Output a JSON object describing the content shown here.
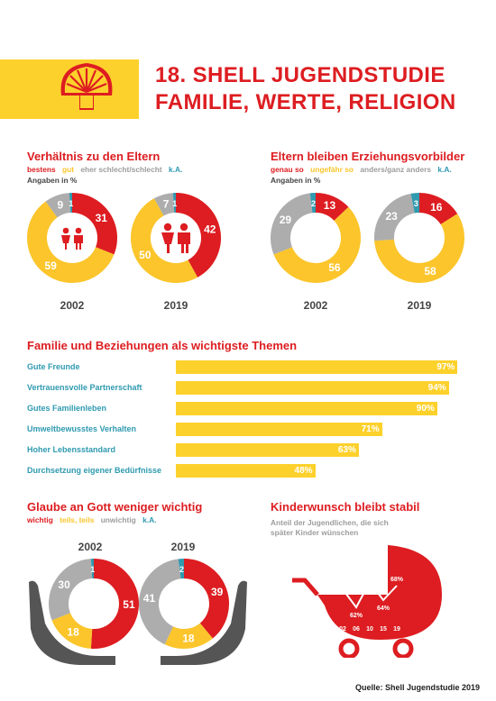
{
  "header": {
    "title_line1": "18. SHELL JUGENDSTUDIE",
    "title_line2": "FAMILIE, WERTE, RELIGION"
  },
  "colors": {
    "red": "#dd1d21",
    "yellow": "#fbc52b",
    "gray": "#adadad",
    "teal": "#2f9ab0"
  },
  "parents": {
    "title": "Verhältnis zu den Eltern",
    "legend": [
      "bestens",
      "gut",
      "eher schlecht/schlecht",
      "k.A."
    ],
    "unit": "Angaben in %"
  },
  "educators": {
    "title": "Eltern bleiben Erziehungsvorbilder",
    "legend": [
      "genau so",
      "ungefähr so",
      "anders/ganz anders",
      "k.A."
    ],
    "unit": "Angaben in %"
  },
  "themes": {
    "title": "Familie und Beziehungen als wichtigste Themen"
  },
  "faith": {
    "title": "Glaube an Gott weniger wichtig",
    "legend": [
      "wichtig",
      "teils, teils",
      "unwichtig",
      "k.A."
    ]
  },
  "children": {
    "title": "Kinderwunsch bleibt stabil",
    "subtitle1": "Anteil der Jugendlichen, die sich",
    "subtitle2": "später Kinder wünschen"
  },
  "source": "Quelle: Shell Jugendstudie 2019",
  "chart_data": [
    {
      "type": "pie",
      "title": "Verhältnis zu den Eltern",
      "unit": "%",
      "categories": [
        "bestens",
        "gut",
        "eher schlecht/schlecht",
        "k.A."
      ],
      "series": [
        {
          "name": "2002",
          "values": [
            31,
            59,
            9,
            1
          ]
        },
        {
          "name": "2019",
          "values": [
            42,
            50,
            7,
            1
          ]
        }
      ]
    },
    {
      "type": "pie",
      "title": "Eltern bleiben Erziehungsvorbilder",
      "unit": "%",
      "categories": [
        "genau so",
        "ungefähr so",
        "anders/ganz anders",
        "k.A."
      ],
      "series": [
        {
          "name": "2002",
          "values": [
            13,
            56,
            29,
            2
          ]
        },
        {
          "name": "2019",
          "values": [
            16,
            58,
            23,
            3
          ]
        }
      ]
    },
    {
      "type": "bar",
      "title": "Familie und Beziehungen als wichtigste Themen",
      "categories": [
        "Gute Freunde",
        "Vertrauensvolle Partnerschaft",
        "Gutes Familienleben",
        "Umweltbewusstes Verhalten",
        "Hoher Lebensstandard",
        "Durchsetzung eigener Bedürfnisse"
      ],
      "values": [
        97,
        94,
        90,
        71,
        63,
        48
      ],
      "value_suffix": "%"
    },
    {
      "type": "pie",
      "title": "Glaube an Gott weniger wichtig",
      "categories": [
        "wichtig",
        "teils, teils",
        "unwichtig",
        "k.A."
      ],
      "series": [
        {
          "name": "2002",
          "values": [
            51,
            18,
            30,
            1
          ]
        },
        {
          "name": "2019",
          "values": [
            39,
            18,
            41,
            2
          ]
        }
      ]
    },
    {
      "type": "line",
      "title": "Kinderwunsch bleibt stabil",
      "x": [
        "02",
        "06",
        "10",
        "15",
        "19"
      ],
      "values": [
        67,
        62,
        69,
        64,
        68
      ],
      "value_suffix": "%"
    }
  ]
}
